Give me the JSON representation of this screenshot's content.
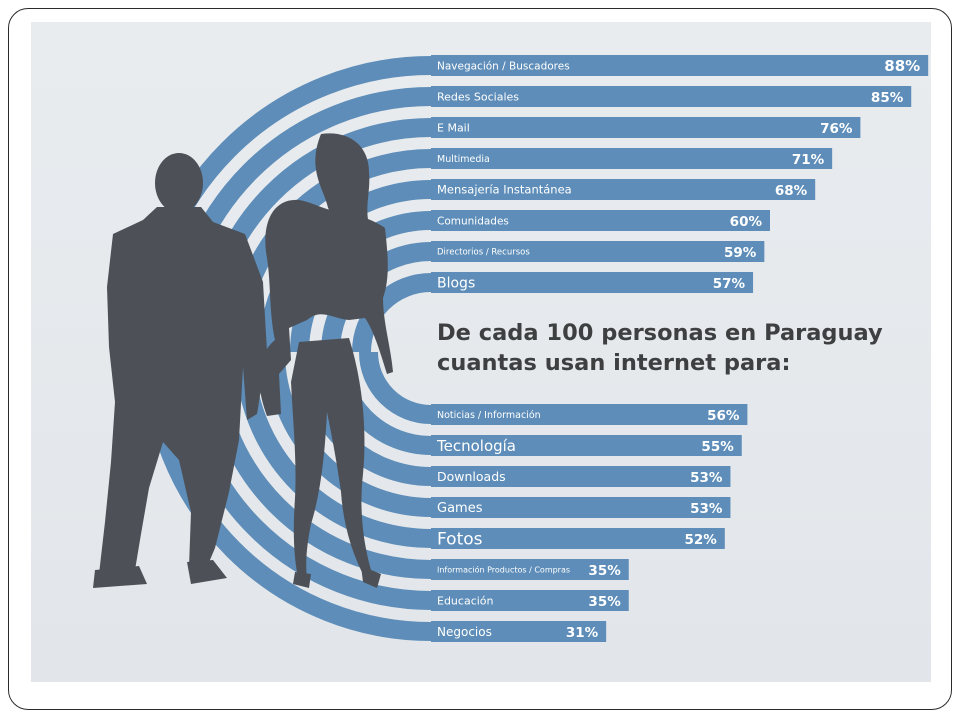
{
  "chart_data": {
    "type": "bar",
    "orientation": "horizontal",
    "title": "De cada 100 personas en Paraguay cuantas usan internet para:",
    "title_lines": [
      "De cada 100 personas en Paraguay",
      "cuantas usan internet para:"
    ],
    "unit": "%",
    "xlim": [
      0,
      100
    ],
    "grid": false,
    "legend": "none",
    "bar_color": "#5d8db8",
    "groups": [
      {
        "name": "top",
        "categories": [
          "Navegación / Buscadores",
          "Redes Sociales",
          "E Mail",
          "Multimedia",
          "Mensajería Instantánea",
          "Comunidades",
          "Directorios / Recursos",
          "Blogs"
        ],
        "values": [
          88,
          85,
          76,
          71,
          68,
          60,
          59,
          57
        ],
        "labels": [
          "88%",
          "85%",
          "76%",
          "71%",
          "68%",
          "60%",
          "59%",
          "57%"
        ]
      },
      {
        "name": "bottom",
        "categories": [
          "Noticias / Información",
          "Tecnología",
          "Downloads",
          "Games",
          "Fotos",
          "Información Productos / Compras",
          "Educación",
          "Negocios"
        ],
        "values": [
          56,
          55,
          53,
          53,
          52,
          35,
          35,
          31
        ],
        "labels": [
          "56%",
          "55%",
          "53%",
          "53%",
          "52%",
          "35%",
          "35%",
          "31%"
        ]
      }
    ]
  },
  "colors": {
    "bar": "#5d8db8",
    "arc": "#5d8db8",
    "silhouette": "#4d5056",
    "background": "#e6e9ec",
    "headline": "#3e3f41"
  },
  "illustration": {
    "icons": [
      "man-silhouette-icon",
      "woman-silhouette-icon"
    ]
  }
}
